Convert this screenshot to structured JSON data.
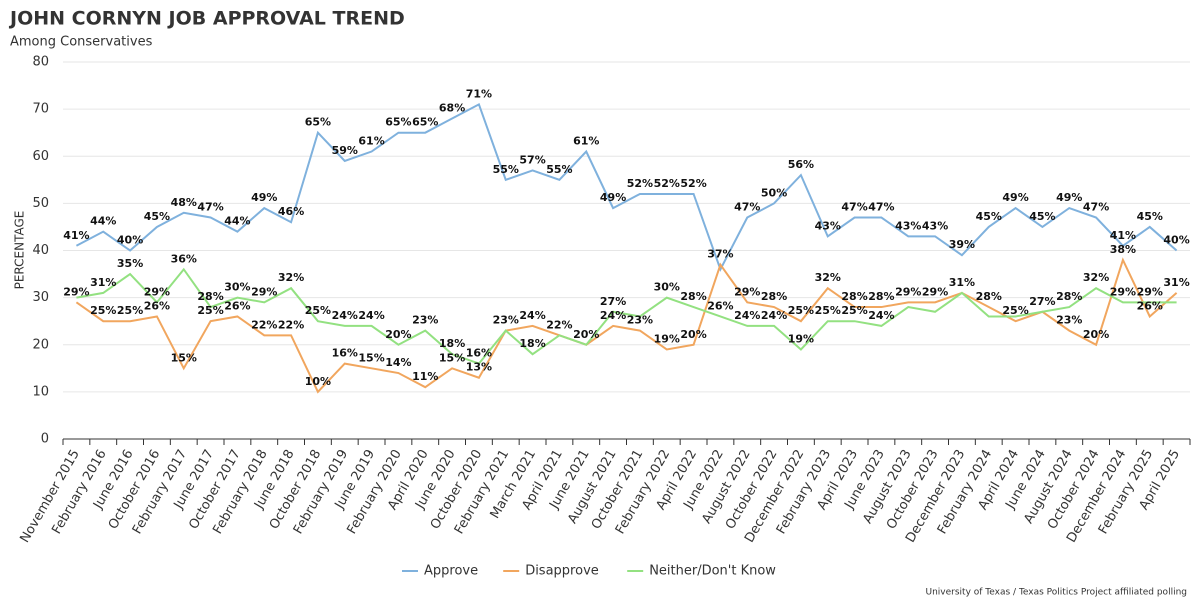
{
  "chart_data": {
    "type": "line",
    "title": "JOHN CORNYN JOB APPROVAL TREND",
    "subtitle": "Among Conservatives",
    "y_label": "PERCENTAGE",
    "source": "University of Texas / Texas Politics Project affiliated polling",
    "categories": [
      "November 2015",
      "February 2016",
      "June 2016",
      "October 2016",
      "February 2017",
      "June 2017",
      "October 2017",
      "February 2018",
      "June 2018",
      "October 2018",
      "February 2019",
      "June 2019",
      "February 2020",
      "April 2020",
      "June 2020",
      "October 2020",
      "February 2021",
      "March 2021",
      "April 2021",
      "June 2021",
      "August 2021",
      "October 2021",
      "February 2022",
      "April 2022",
      "June 2022",
      "August 2022",
      "October 2022",
      "December 2022",
      "February 2023",
      "April 2023",
      "June 2023",
      "August 2023",
      "October 2023",
      "December 2023",
      "February 2024",
      "April 2024",
      "June 2024",
      "August 2024",
      "October 2024",
      "December 2024",
      "February 2025",
      "April 2025"
    ],
    "series": [
      {
        "name": "Approve",
        "color": "#7fb1dd",
        "values": [
          41,
          44,
          40,
          45,
          48,
          47,
          44,
          49,
          46,
          65,
          59,
          61,
          65,
          65,
          68,
          71,
          55,
          57,
          55,
          61,
          49,
          52,
          52,
          52,
          36,
          47,
          50,
          56,
          43,
          47,
          47,
          43,
          43,
          39,
          45,
          49,
          45,
          49,
          47,
          41,
          45,
          40
        ],
        "value_labels": [
          "41%",
          "44%",
          "40%",
          "45%",
          "48%",
          "47%",
          "44%",
          "49%",
          "46%",
          "65%",
          "59%",
          "61%",
          "65%",
          "65%",
          "68%",
          "71%",
          "55%",
          "57%",
          "55%",
          "61%",
          "49%",
          "52%",
          "52%",
          "52%",
          null,
          "47%",
          "50%",
          "56%",
          "43%",
          "47%",
          "47%",
          "43%",
          "43%",
          "39%",
          "45%",
          "49%",
          "45%",
          "49%",
          "47%",
          "41%",
          "45%",
          "40%"
        ]
      },
      {
        "name": "Disapprove",
        "color": "#f1a65e",
        "values": [
          29,
          25,
          25,
          26,
          15,
          25,
          26,
          22,
          22,
          10,
          16,
          15,
          14,
          11,
          15,
          13,
          23,
          24,
          22,
          20,
          24,
          23,
          19,
          20,
          37,
          29,
          28,
          25,
          32,
          28,
          28,
          29,
          29,
          31,
          28,
          25,
          27,
          23,
          20,
          38,
          26,
          31
        ],
        "value_labels": [
          "29%",
          "25%",
          "25%",
          "26%",
          "15%",
          "25%",
          "26%",
          "22%",
          "22%",
          "10%",
          "16%",
          "15%",
          "14%",
          "11%",
          "15%",
          "13%",
          null,
          "24%",
          "22%",
          null,
          "24%",
          "23%",
          "19%",
          "20%",
          "37%",
          "29%",
          "28%",
          "25%",
          "32%",
          "28%",
          "28%",
          "29%",
          "29%",
          "31%",
          "28%",
          "25%",
          "27%",
          "23%",
          "20%",
          "38%",
          "26%",
          "31%"
        ]
      },
      {
        "name": "Neither/Don't Know",
        "color": "#93e181",
        "values": [
          30,
          31,
          35,
          29,
          36,
          28,
          30,
          29,
          32,
          25,
          24,
          24,
          20,
          23,
          18,
          16,
          23,
          18,
          22,
          20,
          27,
          26,
          30,
          28,
          26,
          24,
          24,
          19,
          25,
          25,
          24,
          28,
          27,
          31,
          26,
          26,
          27,
          28,
          32,
          29,
          29,
          29
        ],
        "value_labels": [
          null,
          "31%",
          "35%",
          "29%",
          "36%",
          "28%",
          "30%",
          "29%",
          "32%",
          "25%",
          "24%",
          "24%",
          "20%",
          "23%",
          "18%",
          "16%",
          "23%",
          "18%",
          null,
          "20%",
          "27%",
          null,
          "30%",
          "28%",
          "26%",
          "24%",
          "24%",
          "19%",
          "25%",
          "25%",
          "24%",
          null,
          null,
          null,
          null,
          null,
          null,
          "28%",
          "32%",
          "29%",
          "29%",
          null
        ]
      }
    ],
    "ylim": [
      0,
      80
    ],
    "yticks": [
      0,
      10,
      20,
      30,
      40,
      50,
      60,
      70,
      80
    ],
    "grid": true
  }
}
